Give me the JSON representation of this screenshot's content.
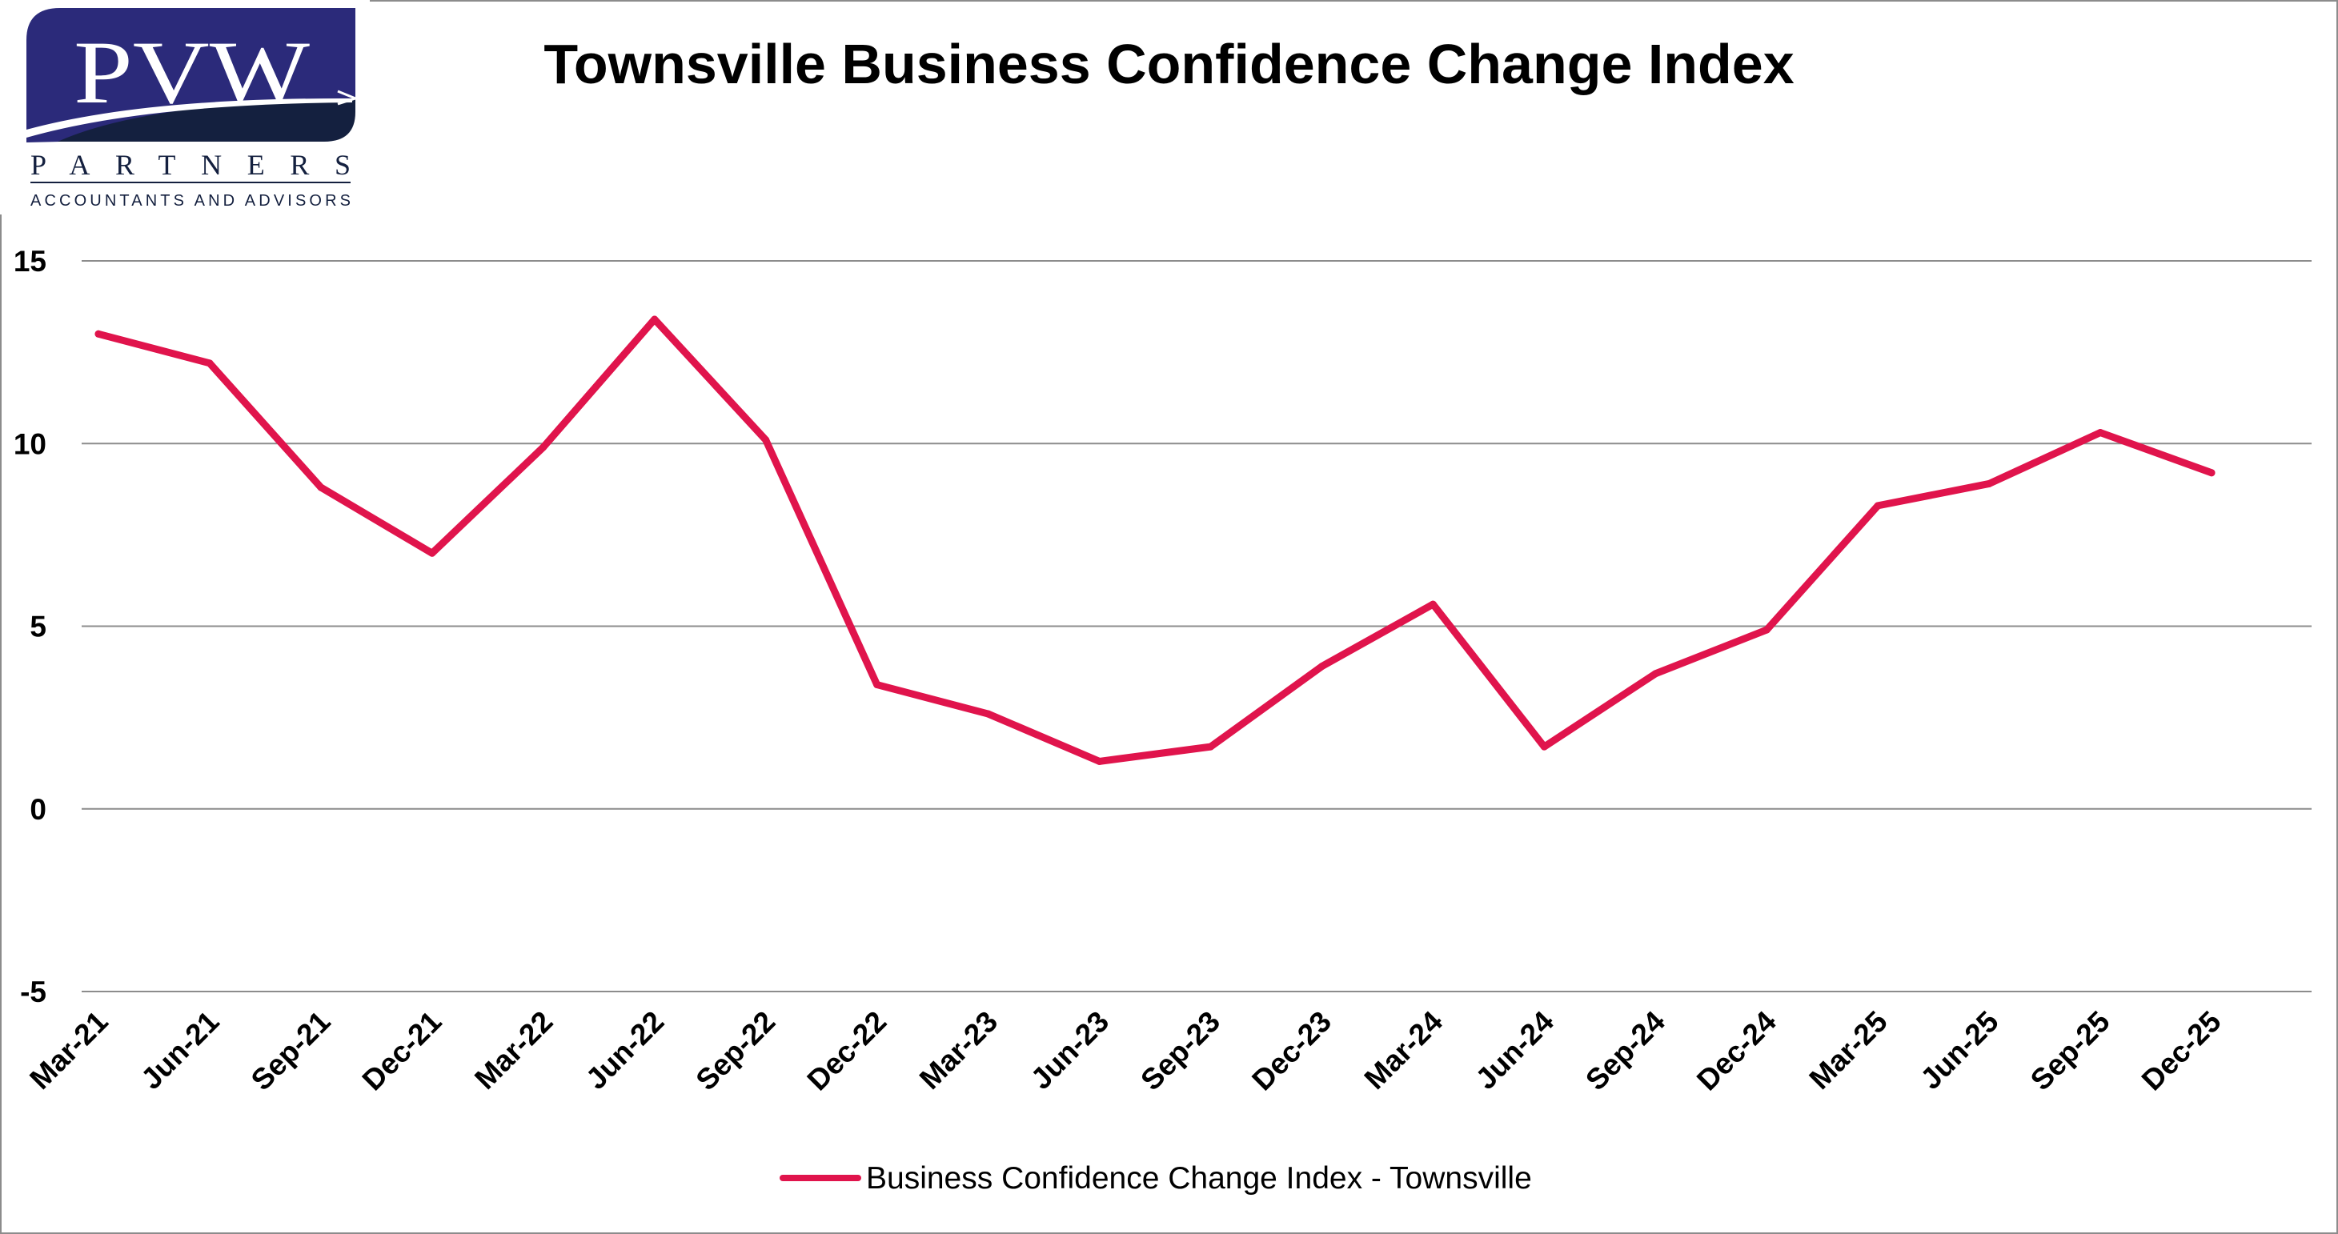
{
  "logo": {
    "brand": "PVW",
    "name": "PARTNERS",
    "tagline": "ACCOUNTANTS AND ADVISORS",
    "colors": {
      "primary": "#2b2a7a",
      "dark": "#14203f"
    }
  },
  "chart_data": {
    "type": "line",
    "title": "Townsville Business Confidence Change Index",
    "xlabel": "",
    "ylabel": "",
    "categories": [
      "Mar-21",
      "Jun-21",
      "Sep-21",
      "Dec-21",
      "Mar-22",
      "Jun-22",
      "Sep-22",
      "Dec-22",
      "Mar-23",
      "Jun-23",
      "Sep-23",
      "Dec-23",
      "Mar-24",
      "Jun-24",
      "Sep-24",
      "Dec-24",
      "Mar-25",
      "Jun-25",
      "Sep-25",
      "Dec-25"
    ],
    "series": [
      {
        "name": "Business Confidence Change Index - Townsville",
        "color": "#e0144c",
        "values": [
          13.0,
          12.2,
          8.8,
          7.0,
          9.9,
          13.4,
          10.1,
          3.4,
          2.6,
          1.3,
          1.7,
          3.9,
          5.6,
          1.7,
          3.7,
          4.9,
          8.3,
          8.9,
          10.3,
          9.2
        ]
      }
    ],
    "ylim": [
      -5,
      15
    ],
    "yticks": [
      "-5",
      "0",
      "5",
      "10",
      "15"
    ],
    "grid": true,
    "gridline_color": "#8c8c8c",
    "legend_position": "bottom"
  }
}
